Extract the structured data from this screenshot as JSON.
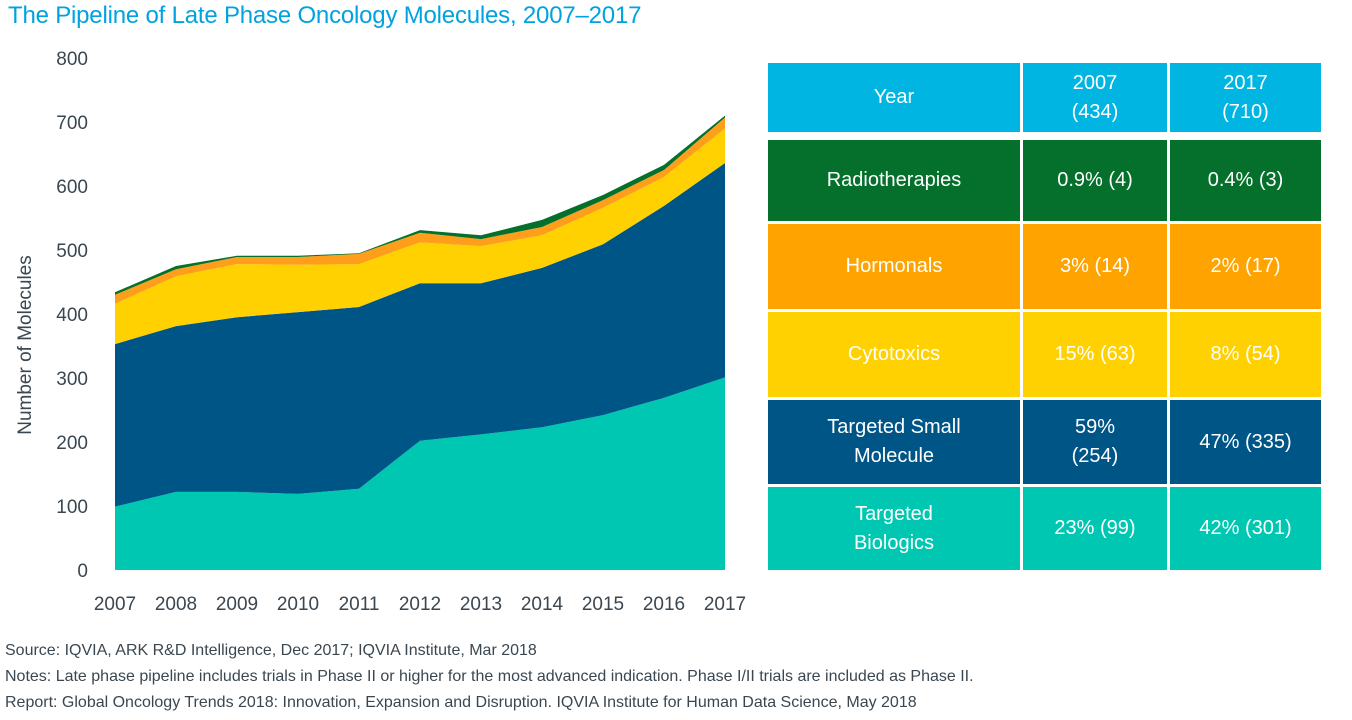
{
  "title": "The Pipeline of Late Phase Oncology Molecules, 2007–2017",
  "chart_data": {
    "type": "area",
    "stacked": true,
    "title": "The Pipeline of Late Phase Oncology Molecules, 2007–2017",
    "xlabel": "",
    "ylabel": "Number of Molecules",
    "ylim": [
      0,
      800
    ],
    "yticks": [
      0,
      100,
      200,
      300,
      400,
      500,
      600,
      700,
      800
    ],
    "grid": false,
    "x": [
      "2007",
      "2008",
      "2009",
      "2010",
      "2011",
      "2012",
      "2013",
      "2014",
      "2015",
      "2016",
      "2017"
    ],
    "series": [
      {
        "name": "Targeted Biologics",
        "color": "#00c7b1",
        "values": [
          99,
          122,
          122,
          119,
          127,
          202,
          212,
          223,
          242,
          269,
          301
        ]
      },
      {
        "name": "Targeted Small Molecule",
        "color": "#005587",
        "values": [
          254,
          259,
          273,
          284,
          284,
          246,
          236,
          249,
          267,
          300,
          335
        ]
      },
      {
        "name": "Cytotoxics",
        "color": "#ffd100",
        "values": [
          63,
          78,
          83,
          74,
          67,
          64,
          58,
          51,
          57,
          45,
          54
        ]
      },
      {
        "name": "Hormonals",
        "color": "#ff9e1b",
        "values": [
          14,
          11,
          11,
          12,
          16,
          15,
          11,
          13,
          12,
          11,
          17
        ]
      },
      {
        "name": "Radiotherapies",
        "color": "#04702b",
        "values": [
          4,
          5,
          2,
          2,
          1,
          4,
          6,
          11,
          8,
          8,
          3
        ]
      }
    ]
  },
  "table": {
    "header": {
      "label": "Year",
      "col1": "2007\n(434)",
      "col2": "2017\n(710)",
      "color": "#00b5e2"
    },
    "rows": [
      {
        "label": "Radiotherapies",
        "v2007": "0.9% (4)",
        "v2017": "0.4% (3)",
        "color": "#04702b"
      },
      {
        "label": "Hormonals",
        "v2007": "3% (14)",
        "v2017": "2% (17)",
        "color": "#ffa300"
      },
      {
        "label": "Cytotoxics",
        "v2007": "15% (63)",
        "v2017": "8% (54)",
        "color": "#ffd100"
      },
      {
        "label": "Targeted Small\nMolecule",
        "v2007": "59%\n(254)",
        "v2017": "47% (335)",
        "color": "#005587"
      },
      {
        "label": "Targeted\nBiologics",
        "v2007": "23% (99)",
        "v2017": "42% (301)",
        "color": "#00c7b1"
      }
    ]
  },
  "footer": {
    "source": "Source: IQVIA, ARK R&D Intelligence, Dec 2017; IQVIA Institute, Mar 2018",
    "notes": "Notes: Late phase pipeline includes trials in Phase II or higher for the most advanced indication. Phase I/II trials are included as Phase II.",
    "report": "Report: Global Oncology Trends 2018: Innovation, Expansion and Disruption. IQVIA Institute for Human Data Science, May 2018"
  }
}
